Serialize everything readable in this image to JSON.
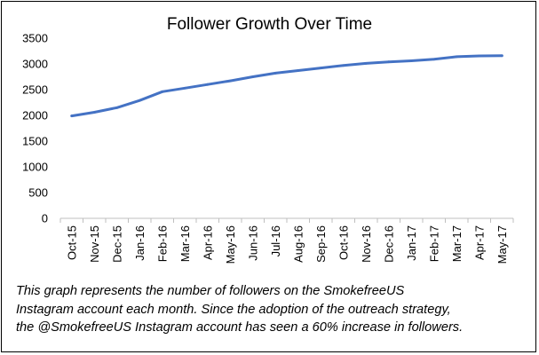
{
  "chart_data": {
    "type": "line",
    "title": "Follower Growth Over Time",
    "xlabel": "",
    "ylabel": "",
    "categories": [
      "Oct-15",
      "Nov-15",
      "Dec-15",
      "Jan-16",
      "Feb-16",
      "Mar-16",
      "Apr-16",
      "May-16",
      "Jun-16",
      "Jul-16",
      "Aug-16",
      "Sep-16",
      "Oct-16",
      "Nov-16",
      "Dec-16",
      "Jan-17",
      "Feb-17",
      "Mar-17",
      "Apr-17",
      "May-17"
    ],
    "series": [
      {
        "values": [
          1990,
          2060,
          2150,
          2290,
          2460,
          2530,
          2600,
          2670,
          2750,
          2820,
          2870,
          2920,
          2970,
          3010,
          3040,
          3060,
          3090,
          3140,
          3155,
          3160
        ],
        "color": "#4472C4"
      }
    ],
    "ylim": [
      0,
      3500
    ],
    "yticks": [
      0,
      500,
      1000,
      1500,
      2000,
      2500,
      3000,
      3500
    ],
    "grid": false,
    "legend": "none"
  },
  "caption": {
    "lines": [
      "This graph represents the number of followers on the SmokefreeUS",
      "Instagram account each month. Since the adoption of the outreach strategy,",
      "the @SmokefreeUS Instagram account has seen a 60% increase in followers."
    ]
  }
}
